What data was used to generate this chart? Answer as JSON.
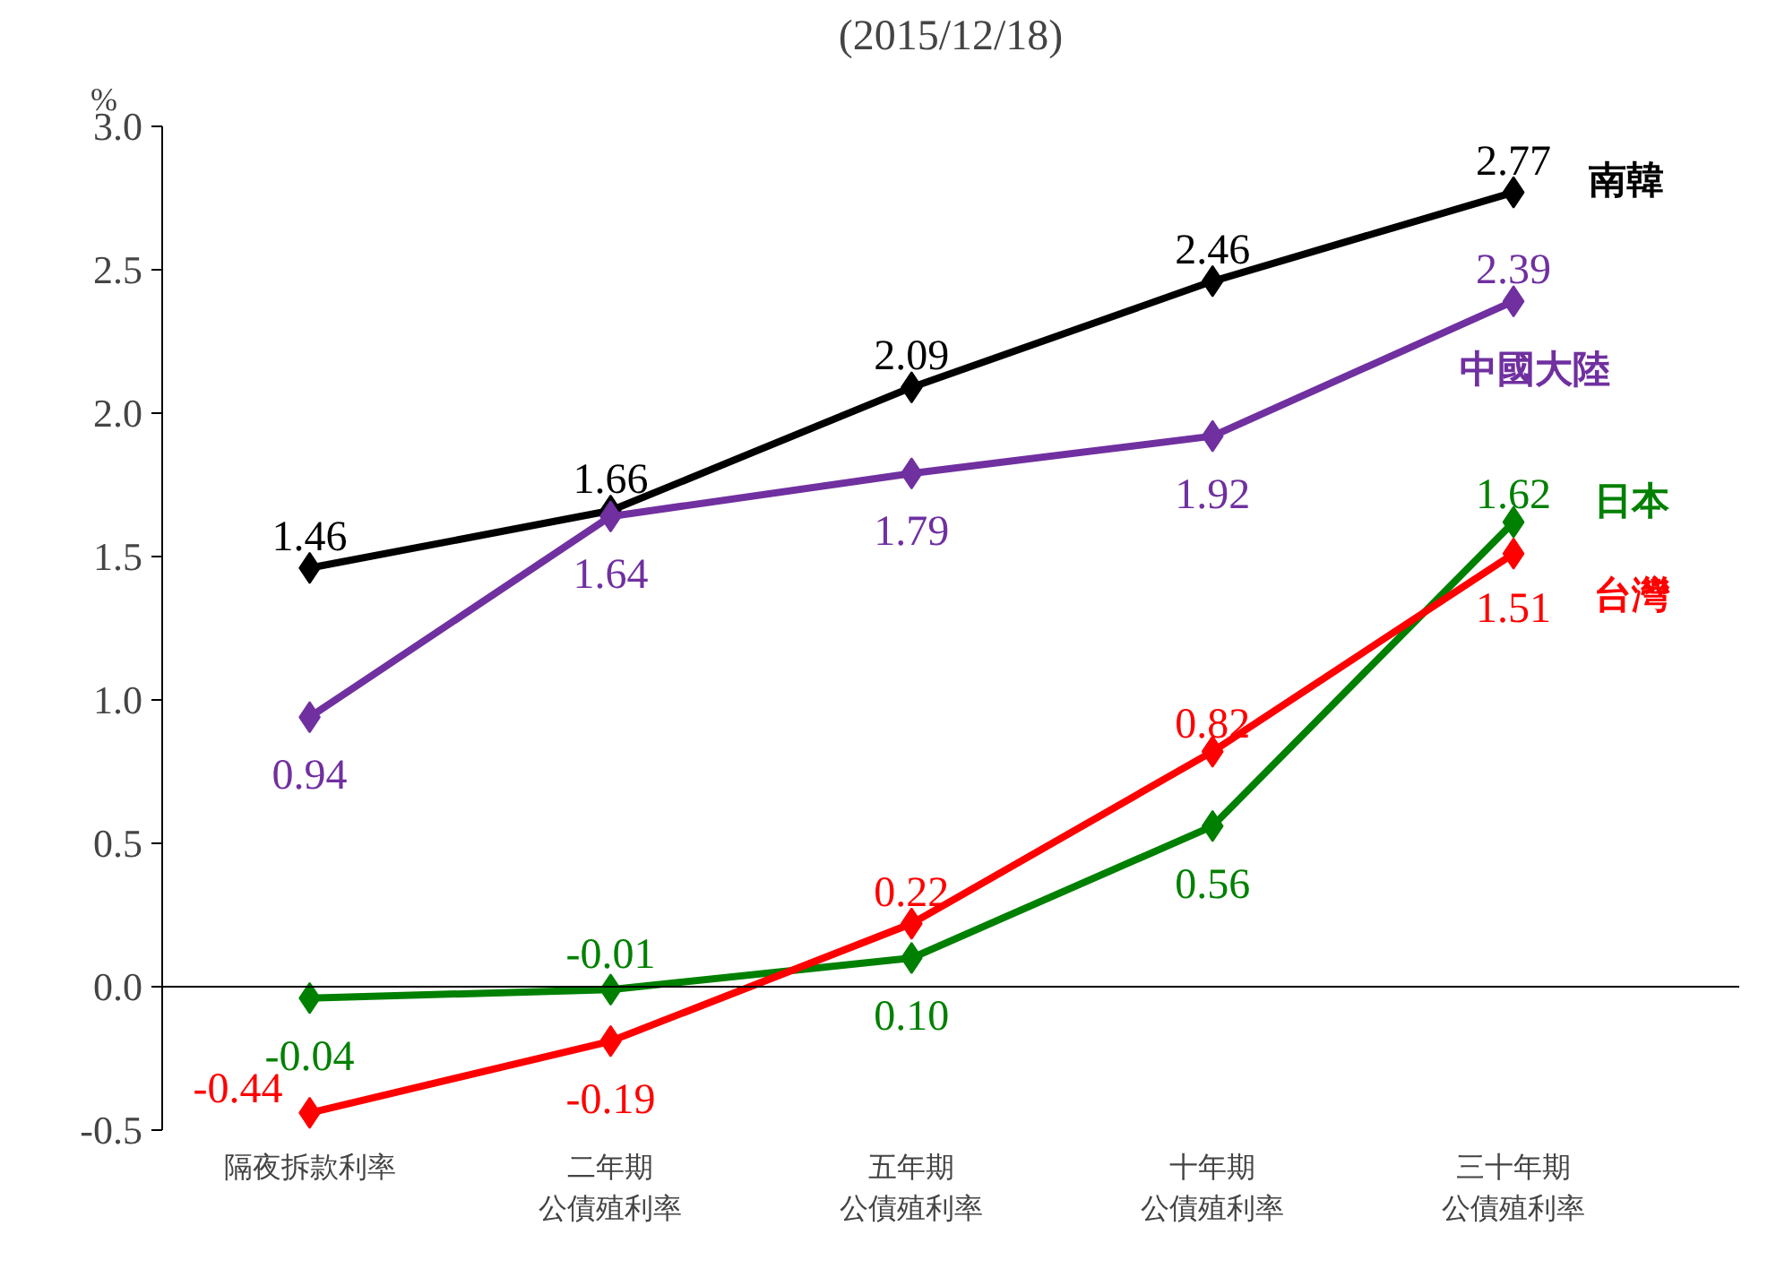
{
  "chart_data": {
    "type": "line",
    "title": "(2015/12/18)",
    "ylabel": "%",
    "categories": [
      "隔夜拆款利率",
      "二年期公債殖利率",
      "五年期公債殖利率",
      "十年期公債殖利率",
      "三十年期公債殖利率"
    ],
    "series": [
      {
        "name": "南韓",
        "color": "#000000",
        "values": [
          1.46,
          1.66,
          2.09,
          2.46,
          2.77
        ]
      },
      {
        "name": "中國大陸",
        "color": "#7030a0",
        "values": [
          0.94,
          1.64,
          1.79,
          1.92,
          2.39
        ]
      },
      {
        "name": "日本",
        "color": "#008000",
        "values": [
          -0.04,
          -0.01,
          0.1,
          0.56,
          1.62
        ],
        "value_labels": [
          "-0.04",
          "-0.01",
          "0.10",
          "0.56",
          "1.62"
        ]
      },
      {
        "name": "台灣",
        "color": "#ff0000",
        "values": [
          -0.44,
          -0.19,
          0.22,
          0.82,
          1.51
        ]
      }
    ],
    "ylim": [
      -0.5,
      3.0
    ],
    "yticks": [
      {
        "value": -0.5,
        "label": "-0.5"
      },
      {
        "value": 0,
        "label": "0.0"
      },
      {
        "value": 0.5,
        "label": "0.5"
      },
      {
        "value": 1,
        "label": "1.0"
      },
      {
        "value": 1.5,
        "label": "1.5"
      },
      {
        "value": 2,
        "label": "2.0"
      },
      {
        "value": 2.5,
        "label": "2.5"
      },
      {
        "value": 3,
        "label": "3.0"
      }
    ],
    "legend": false,
    "marker": "diamond",
    "line_style": "solid",
    "data_labels": true
  }
}
